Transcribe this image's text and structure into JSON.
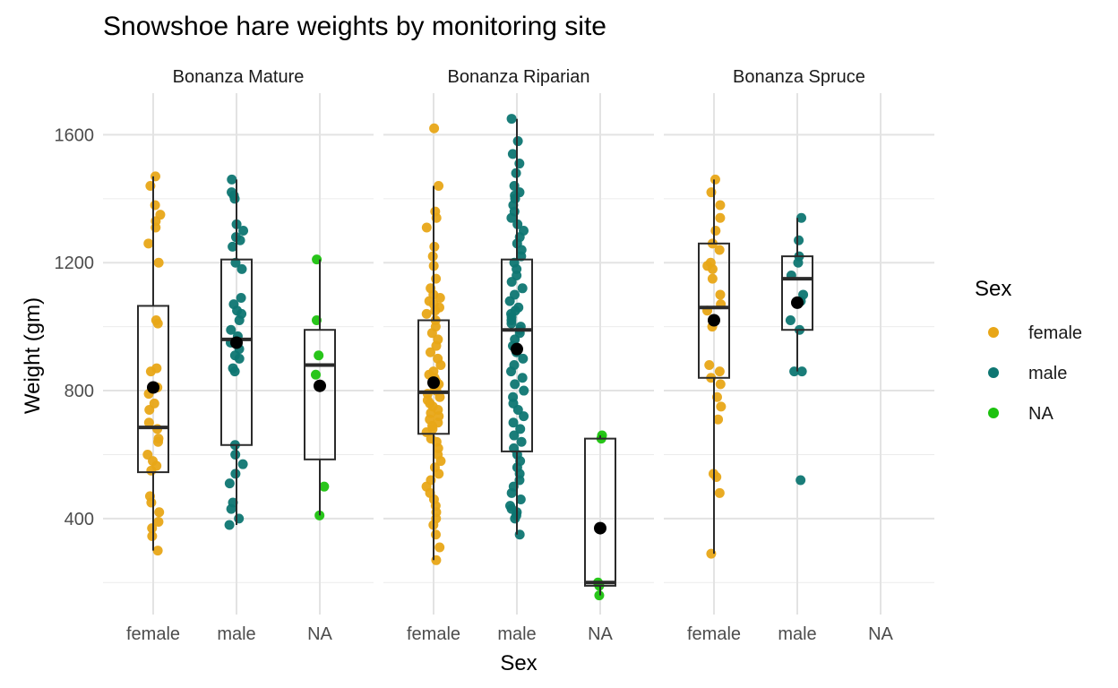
{
  "chart_data": {
    "type": "box",
    "title": "Snowshoe hare weights by monitoring site",
    "xlabel": "Sex",
    "ylabel": "Weight (gm)",
    "ylim": [
      100,
      1730
    ],
    "y_ticks": [
      400,
      800,
      1200,
      1600
    ],
    "categories": [
      "female",
      "male",
      "NA"
    ],
    "legend": {
      "title": "Sex",
      "position": "right",
      "entries": [
        {
          "label": "female",
          "color": "#E8A617"
        },
        {
          "label": "male",
          "color": "#0E7672"
        },
        {
          "label": "NA",
          "color": "#1CC20E"
        }
      ]
    },
    "mean_marker_color": "#000000",
    "panels": [
      {
        "name": "Bonanza Mature",
        "groups": [
          {
            "category": "female",
            "box": {
              "whisker_low": 300,
              "q1": 545,
              "median": 685,
              "q3": 1065,
              "whisker_high": 1470
            },
            "mean": 810,
            "points": [
              1470,
              1440,
              1380,
              1350,
              1330,
              1310,
              1260,
              1200,
              1020,
              1010,
              870,
              860,
              810,
              790,
              760,
              740,
              700,
              680,
              650,
              640,
              600,
              580,
              565,
              550,
              470,
              450,
              420,
              390,
              370,
              345,
              300
            ]
          },
          {
            "category": "male",
            "box": {
              "whisker_low": 380,
              "q1": 630,
              "median": 960,
              "q3": 1210,
              "whisker_high": 1460
            },
            "mean": 950,
            "points": [
              1460,
              1420,
              1410,
              1400,
              1320,
              1300,
              1280,
              1270,
              1250,
              1200,
              1180,
              1090,
              1070,
              1050,
              1040,
              1020,
              990,
              970,
              950,
              930,
              910,
              900,
              870,
              860,
              630,
              600,
              570,
              540,
              510,
              450,
              430,
              400,
              380
            ]
          },
          {
            "category": "NA",
            "box": {
              "whisker_low": 410,
              "q1": 585,
              "median": 880,
              "q3": 990,
              "whisker_high": 1210
            },
            "mean": 815,
            "points": [
              1210,
              1020,
              910,
              850,
              500,
              410
            ]
          }
        ]
      },
      {
        "name": "Bonanza Riparian",
        "groups": [
          {
            "category": "female",
            "box": {
              "whisker_low": 270,
              "q1": 665,
              "median": 795,
              "q3": 1020,
              "whisker_high": 1440
            },
            "mean": 825,
            "points": [
              1620,
              1440,
              1360,
              1340,
              1310,
              1250,
              1220,
              1190,
              1150,
              1120,
              1100,
              1090,
              1080,
              1070,
              1060,
              1050,
              1040,
              1020,
              1000,
              980,
              960,
              940,
              920,
              900,
              880,
              860,
              850,
              840,
              830,
              820,
              810,
              800,
              790,
              780,
              770,
              760,
              750,
              740,
              730,
              720,
              710,
              700,
              690,
              680,
              670,
              650,
              640,
              620,
              600,
              580,
              560,
              540,
              520,
              500,
              480,
              460,
              440,
              420,
              400,
              380,
              350,
              310,
              270
            ]
          },
          {
            "category": "male",
            "box": {
              "whisker_low": 350,
              "q1": 610,
              "median": 990,
              "q3": 1210,
              "whisker_high": 1650
            },
            "mean": 930,
            "points": [
              1650,
              1580,
              1540,
              1510,
              1480,
              1440,
              1420,
              1410,
              1400,
              1380,
              1360,
              1340,
              1320,
              1300,
              1280,
              1260,
              1240,
              1220,
              1200,
              1180,
              1160,
              1140,
              1120,
              1100,
              1080,
              1060,
              1050,
              1040,
              1030,
              1020,
              1010,
              1000,
              990,
              980,
              960,
              940,
              920,
              900,
              880,
              860,
              840,
              820,
              800,
              780,
              760,
              740,
              720,
              700,
              680,
              660,
              640,
              620,
              600,
              580,
              560,
              540,
              520,
              500,
              480,
              460,
              440,
              430,
              420,
              410,
              400,
              350
            ]
          },
          {
            "category": "NA",
            "box": {
              "whisker_low": 160,
              "q1": 190,
              "median": 200,
              "q3": 650,
              "whisker_high": 660
            },
            "mean": 370,
            "points": [
              660,
              650,
              200,
              190,
              160
            ]
          }
        ]
      },
      {
        "name": "Bonanza Spruce",
        "groups": [
          {
            "category": "female",
            "box": {
              "whisker_low": 290,
              "q1": 840,
              "median": 1060,
              "q3": 1260,
              "whisker_high": 1460
            },
            "mean": 1020,
            "points": [
              1460,
              1420,
              1380,
              1340,
              1300,
              1260,
              1240,
              1200,
              1190,
              1180,
              1150,
              1100,
              1070,
              1050,
              1020,
              1000,
              880,
              860,
              840,
              820,
              780,
              750,
              710,
              540,
              530,
              480,
              290
            ]
          },
          {
            "category": "male",
            "box": {
              "whisker_low": 860,
              "q1": 990,
              "median": 1150,
              "q3": 1220,
              "whisker_high": 1340
            },
            "mean": 1075,
            "points": [
              1340,
              1270,
              1220,
              1200,
              1160,
              1100,
              1080,
              1020,
              990,
              860,
              860,
              520
            ]
          },
          {
            "category": "NA",
            "points": []
          }
        ]
      }
    ]
  }
}
